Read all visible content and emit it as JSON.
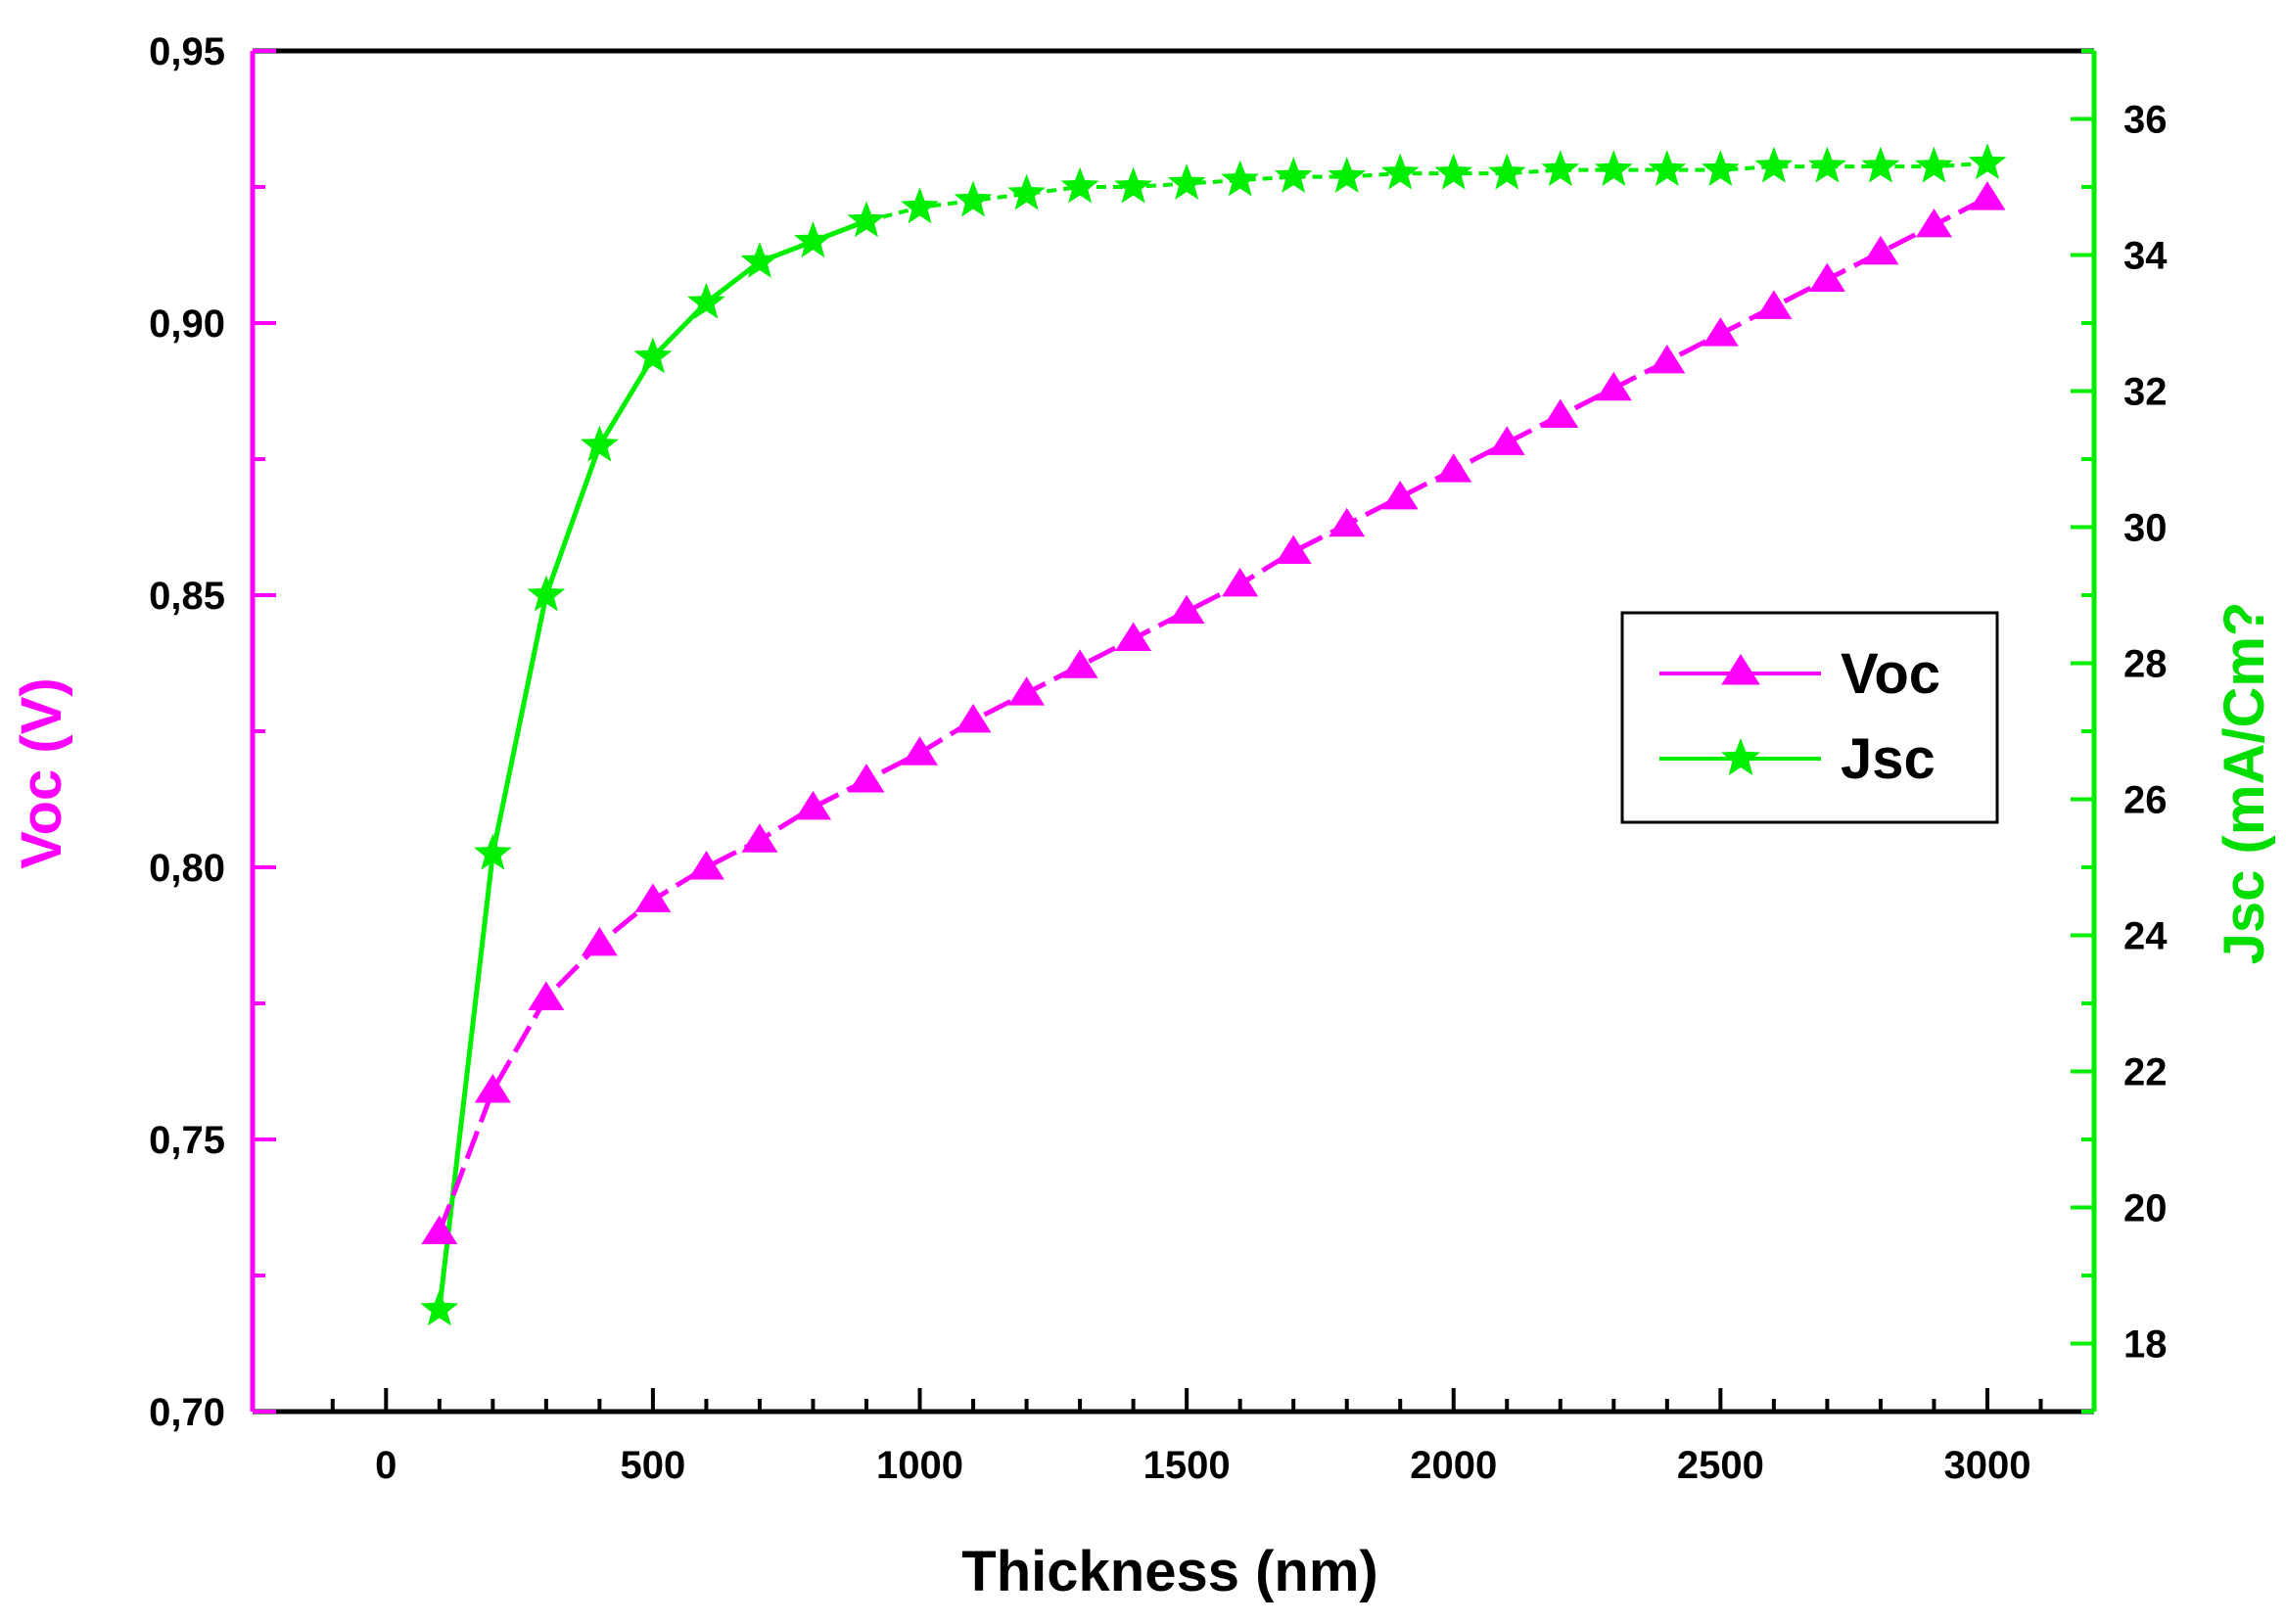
{
  "chart_data": {
    "type": "line",
    "title": "",
    "xlabel": "Thickness (nm)",
    "ylabel_left": "Voc (V)",
    "ylabel_right": "Jsc (mA/Cm?",
    "xlim": [
      -250,
      3200
    ],
    "ylim_left": [
      0.7,
      0.95
    ],
    "ylim_right": [
      17,
      37
    ],
    "x_ticks": [
      0,
      500,
      1000,
      1500,
      2000,
      2500,
      3000
    ],
    "x_tick_labels": [
      "0",
      "500",
      "1000",
      "1500",
      "2000",
      "2500",
      "3000"
    ],
    "y_left_ticks": [
      0.7,
      0.75,
      0.8,
      0.85,
      0.9,
      0.95
    ],
    "y_left_tick_labels": [
      "0,70",
      "0,75",
      "0,80",
      "0,85",
      "0,90",
      "0,95"
    ],
    "y_right_ticks": [
      18,
      20,
      22,
      24,
      26,
      28,
      30,
      32,
      34,
      36
    ],
    "y_right_tick_labels": [
      "18",
      "20",
      "22",
      "24",
      "26",
      "28",
      "30",
      "32",
      "34",
      "36"
    ],
    "grid": false,
    "legend_position": "right",
    "x": [
      100,
      200,
      300,
      400,
      500,
      600,
      700,
      800,
      900,
      1000,
      1100,
      1200,
      1300,
      1400,
      1500,
      1600,
      1700,
      1800,
      1900,
      2000,
      2100,
      2200,
      2300,
      2400,
      2500,
      2600,
      2700,
      2800,
      2900,
      3000
    ],
    "series": [
      {
        "name": "Voc",
        "axis": "left",
        "color": "#ff00ff",
        "marker": "triangle",
        "values": [
          0.733,
          0.759,
          0.776,
          0.786,
          0.794,
          0.8,
          0.805,
          0.811,
          0.816,
          0.821,
          0.827,
          0.832,
          0.837,
          0.842,
          0.847,
          0.852,
          0.858,
          0.863,
          0.868,
          0.873,
          0.878,
          0.883,
          0.888,
          0.893,
          0.898,
          0.903,
          0.908,
          0.913,
          0.918,
          0.923
        ]
      },
      {
        "name": "Jsc",
        "axis": "right",
        "color": "#00ee00",
        "marker": "star",
        "values": [
          18.5,
          25.2,
          29.0,
          31.2,
          32.5,
          33.3,
          33.9,
          34.2,
          34.5,
          34.7,
          34.8,
          34.9,
          35.0,
          35.0,
          35.05,
          35.1,
          35.15,
          35.15,
          35.2,
          35.2,
          35.2,
          35.25,
          35.25,
          35.25,
          35.25,
          35.3,
          35.3,
          35.3,
          35.3,
          35.35
        ]
      }
    ]
  }
}
